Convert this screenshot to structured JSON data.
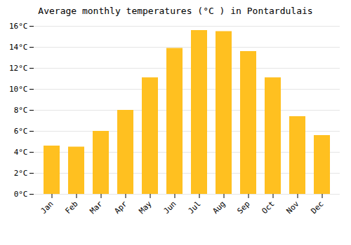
{
  "chart_data": {
    "type": "bar",
    "title": "Average monthly temperatures (°C ) in Pontardulais",
    "categories": [
      "Jan",
      "Feb",
      "Mar",
      "Apr",
      "May",
      "Jun",
      "Jul",
      "Aug",
      "Sep",
      "Oct",
      "Nov",
      "Dec"
    ],
    "values": [
      4.6,
      4.5,
      6.0,
      8.0,
      11.1,
      13.9,
      15.6,
      15.5,
      13.6,
      11.1,
      7.4,
      5.6
    ],
    "color": "#FFC020",
    "ylim": [
      0,
      16
    ],
    "yticks": [
      {
        "value": 0,
        "label": "0°C"
      },
      {
        "value": 2,
        "label": "2°C"
      },
      {
        "value": 4,
        "label": "4°C"
      },
      {
        "value": 6,
        "label": "6°C"
      },
      {
        "value": 8,
        "label": "8°C"
      },
      {
        "value": 10,
        "label": "10°C"
      },
      {
        "value": 12,
        "label": "12°C"
      },
      {
        "value": 14,
        "label": "14°C"
      },
      {
        "value": 16,
        "label": "16°C"
      }
    ],
    "grid": true
  }
}
